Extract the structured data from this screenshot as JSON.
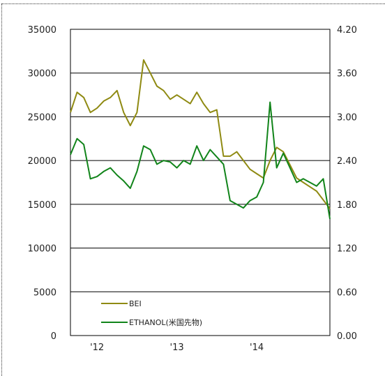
{
  "chart_data": {
    "type": "line",
    "title": "",
    "xlabel": "",
    "ylabel": "",
    "x_range": [
      "2011-09",
      "2014-12"
    ],
    "x_ticks": [
      {
        "label": "'12",
        "date": "2012-01"
      },
      {
        "label": "'13",
        "date": "2013-01"
      },
      {
        "label": "'14",
        "date": "2014-01"
      }
    ],
    "left_axis": {
      "ylim": [
        0,
        35000
      ],
      "ticks": [
        0,
        5000,
        10000,
        15000,
        20000,
        25000,
        30000,
        35000
      ],
      "tick_labels": [
        "0",
        "5000",
        "10000",
        "15000",
        "20000",
        "25000",
        "30000",
        "35000"
      ]
    },
    "right_axis": {
      "ylim": [
        0,
        4.2
      ],
      "ticks": [
        0,
        0.6,
        1.2,
        1.8,
        2.4,
        3.0,
        3.6,
        4.2
      ],
      "tick_labels": [
        "0.00",
        "0.60",
        "1.20",
        "1.80",
        "2.40",
        "3.00",
        "3.60",
        "4.20"
      ]
    },
    "grid": true,
    "legend_position": "bottom-left",
    "series": [
      {
        "name": "BEI",
        "axis": "left",
        "color": "#8f8a12",
        "points": [
          [
            "2011-09",
            25500
          ],
          [
            "2011-10",
            27800
          ],
          [
            "2011-11",
            27200
          ],
          [
            "2011-12",
            25500
          ],
          [
            "2012-01",
            26000
          ],
          [
            "2012-02",
            26800
          ],
          [
            "2012-03",
            27200
          ],
          [
            "2012-04",
            28000
          ],
          [
            "2012-05",
            25500
          ],
          [
            "2012-06",
            24000
          ],
          [
            "2012-07",
            25500
          ],
          [
            "2012-08",
            31500
          ],
          [
            "2012-09",
            30000
          ],
          [
            "2012-10",
            28500
          ],
          [
            "2012-11",
            28000
          ],
          [
            "2012-12",
            27000
          ],
          [
            "2013-01",
            27500
          ],
          [
            "2013-02",
            27000
          ],
          [
            "2013-03",
            26500
          ],
          [
            "2013-04",
            27800
          ],
          [
            "2013-05",
            26500
          ],
          [
            "2013-06",
            25500
          ],
          [
            "2013-07",
            25800
          ],
          [
            "2013-08",
            20500
          ],
          [
            "2013-09",
            20500
          ],
          [
            "2013-10",
            21000
          ],
          [
            "2013-11",
            20000
          ],
          [
            "2013-12",
            19000
          ],
          [
            "2014-01",
            18500
          ],
          [
            "2014-02",
            18000
          ],
          [
            "2014-03",
            20000
          ],
          [
            "2014-04",
            21500
          ],
          [
            "2014-05",
            21000
          ],
          [
            "2014-06",
            19500
          ],
          [
            "2014-07",
            18000
          ],
          [
            "2014-08",
            17500
          ],
          [
            "2014-09",
            17000
          ],
          [
            "2014-10",
            16500
          ],
          [
            "2014-11",
            15500
          ],
          [
            "2014-12",
            14500
          ]
        ]
      },
      {
        "name": "ETHANOL(米国先物)",
        "axis": "right",
        "color": "#11841a",
        "points": [
          [
            "2011-09",
            2.48
          ],
          [
            "2011-10",
            2.7
          ],
          [
            "2011-11",
            2.62
          ],
          [
            "2011-12",
            2.15
          ],
          [
            "2012-01",
            2.18
          ],
          [
            "2012-02",
            2.25
          ],
          [
            "2012-03",
            2.3
          ],
          [
            "2012-04",
            2.2
          ],
          [
            "2012-05",
            2.12
          ],
          [
            "2012-06",
            2.02
          ],
          [
            "2012-07",
            2.25
          ],
          [
            "2012-08",
            2.6
          ],
          [
            "2012-09",
            2.55
          ],
          [
            "2012-10",
            2.35
          ],
          [
            "2012-11",
            2.4
          ],
          [
            "2012-12",
            2.38
          ],
          [
            "2013-01",
            2.3
          ],
          [
            "2013-02",
            2.4
          ],
          [
            "2013-03",
            2.35
          ],
          [
            "2013-04",
            2.6
          ],
          [
            "2013-05",
            2.4
          ],
          [
            "2013-06",
            2.55
          ],
          [
            "2013-07",
            2.45
          ],
          [
            "2013-08",
            2.35
          ],
          [
            "2013-09",
            1.85
          ],
          [
            "2013-10",
            1.8
          ],
          [
            "2013-11",
            1.75
          ],
          [
            "2013-12",
            1.85
          ],
          [
            "2014-01",
            1.9
          ],
          [
            "2014-02",
            2.1
          ],
          [
            "2014-03",
            3.2
          ],
          [
            "2014-04",
            2.3
          ],
          [
            "2014-05",
            2.5
          ],
          [
            "2014-06",
            2.3
          ],
          [
            "2014-07",
            2.1
          ],
          [
            "2014-08",
            2.15
          ],
          [
            "2014-09",
            2.1
          ],
          [
            "2014-10",
            2.05
          ],
          [
            "2014-11",
            2.15
          ],
          [
            "2014-12",
            1.6
          ]
        ]
      }
    ]
  }
}
